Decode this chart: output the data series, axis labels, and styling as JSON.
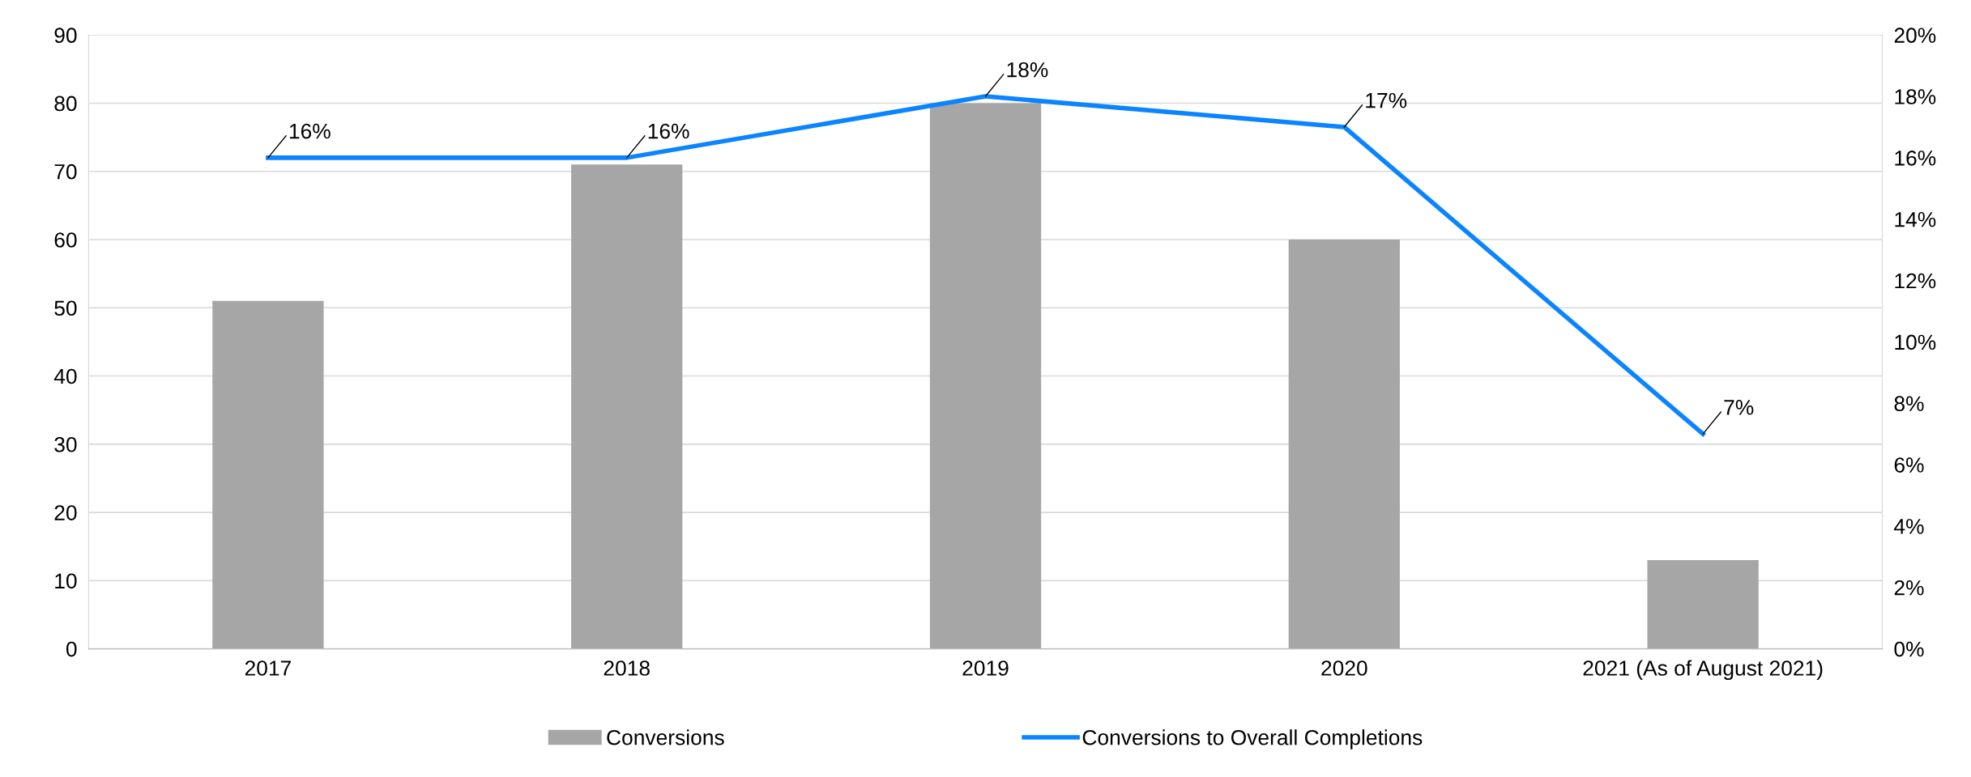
{
  "chart_data": {
    "type": "bar",
    "categories": [
      "2017",
      "2018",
      "2019",
      "2020",
      "2021 (As of August 2021)"
    ],
    "series": [
      {
        "name": "Conversions",
        "color": "#a6a6a6",
        "values": [
          51,
          71,
          80,
          60,
          13
        ]
      },
      {
        "name": "Conversions to Overall Completions",
        "type": "line",
        "axis": "y2",
        "color": "#0a84ff",
        "values": [
          16,
          16,
          18,
          17,
          7
        ],
        "value_labels": [
          "16%",
          "16%",
          "18%",
          "17%",
          "7%"
        ]
      }
    ],
    "ylim": [
      0,
      90
    ],
    "yticks": [
      0,
      10,
      20,
      30,
      40,
      50,
      60,
      70,
      80,
      90
    ],
    "y2lim": [
      0,
      20
    ],
    "y2ticks": [
      {
        "value": 0,
        "label": "0%"
      },
      {
        "value": 2,
        "label": "2%"
      },
      {
        "value": 4,
        "label": "4%"
      },
      {
        "value": 6,
        "label": "6%"
      },
      {
        "value": 8,
        "label": "8%"
      },
      {
        "value": 10,
        "label": "10%"
      },
      {
        "value": 12,
        "label": "12%"
      },
      {
        "value": 14,
        "label": "14%"
      },
      {
        "value": 16,
        "label": "16%"
      },
      {
        "value": 18,
        "label": "18%"
      },
      {
        "value": 20,
        "label": "20%"
      }
    ],
    "grid": "y",
    "legend": "bottom",
    "marker": "none",
    "line_style": "solid"
  }
}
